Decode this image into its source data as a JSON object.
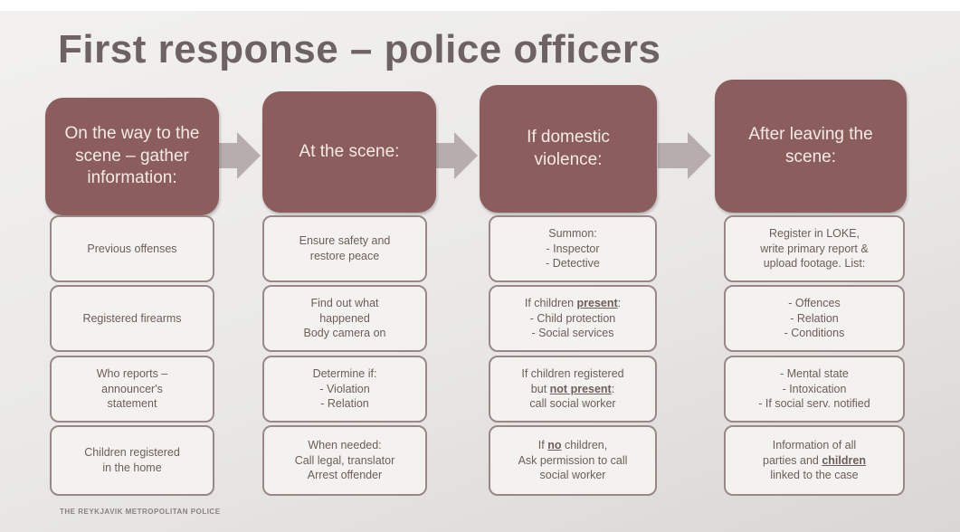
{
  "title": "First response – police officers",
  "footer": "THE REYKJAVIK METROPOLITAN POLICE",
  "columns": [
    {
      "header": "On the way to the scene – gather information:",
      "items": [
        {
          "lines": [
            "Previous offenses"
          ]
        },
        {
          "lines": [
            "Registered firearms"
          ]
        },
        {
          "lines": [
            "Who reports –",
            "announcer's",
            "statement"
          ]
        },
        {
          "lines": [
            "Children registered",
            "in the home"
          ]
        }
      ]
    },
    {
      "header": "At the scene:",
      "items": [
        {
          "lines": [
            "Ensure safety and",
            "restore peace"
          ]
        },
        {
          "lines": [
            "Find out what",
            "happened",
            "Body camera on"
          ]
        },
        {
          "lines": [
            "Determine if:",
            "- Violation",
            "- Relation"
          ]
        },
        {
          "lines": [
            "When needed:",
            "Call legal, translator",
            "Arrest offender"
          ]
        }
      ]
    },
    {
      "header": "If domestic violence:",
      "items": [
        {
          "lines": [
            "Summon:",
            "- Inspector",
            "- Detective"
          ]
        },
        {
          "lines": [
            {
              "runs": [
                {
                  "text": "If children "
                },
                {
                  "text": "present",
                  "strong": true
                },
                {
                  "text": ":"
                }
              ]
            },
            "- Child protection",
            "- Social services"
          ]
        },
        {
          "lines": [
            "If children registered",
            {
              "runs": [
                {
                  "text": "but "
                },
                {
                  "text": "not present",
                  "strong": true
                },
                {
                  "text": ":"
                }
              ]
            },
            "call social worker"
          ]
        },
        {
          "lines": [
            {
              "runs": [
                {
                  "text": "If "
                },
                {
                  "text": "no",
                  "strong": true
                },
                {
                  "text": " children,"
                }
              ]
            },
            "Ask permission to call",
            "social worker"
          ]
        }
      ]
    },
    {
      "header": "After leaving the scene:",
      "items": [
        {
          "lines": [
            "Register in LOKE,",
            "write primary report &",
            "upload footage. List:"
          ]
        },
        {
          "lines": [
            "- Offences",
            "- Relation",
            "- Conditions"
          ]
        },
        {
          "lines": [
            "- Mental state",
            "- Intoxication",
            "- If social serv. notified"
          ]
        },
        {
          "lines": [
            "Information of all",
            {
              "runs": [
                {
                  "text": "parties and "
                },
                {
                  "text": "children",
                  "strong": true
                }
              ]
            },
            "linked to the case"
          ]
        }
      ]
    }
  ]
}
